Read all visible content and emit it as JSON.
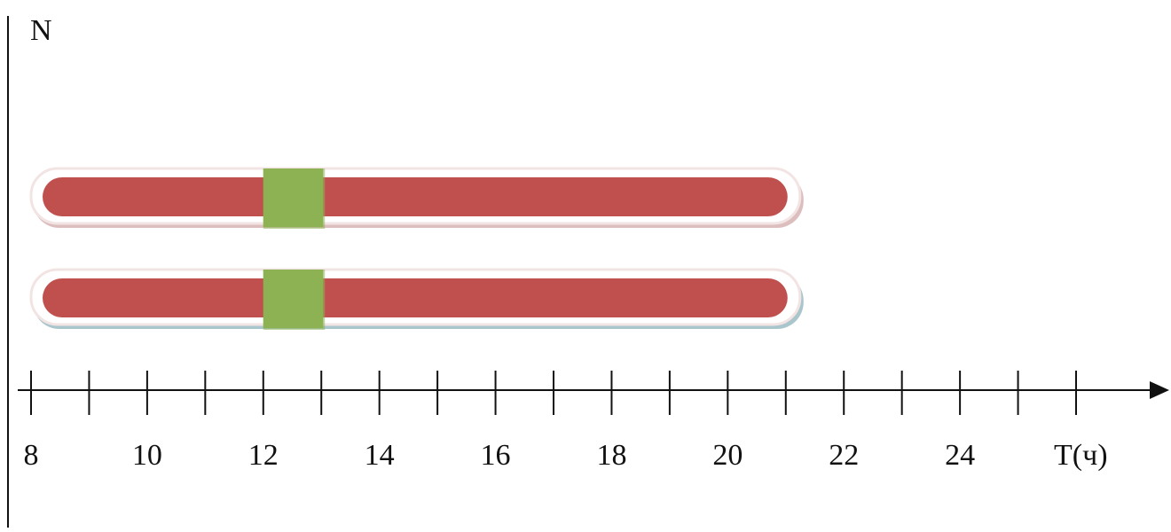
{
  "y_axis": {
    "label": "N"
  },
  "x_axis": {
    "label": "T(ч)",
    "tick_values": [
      8,
      9,
      10,
      11,
      12,
      13,
      14,
      15,
      16,
      17,
      18,
      19,
      20,
      21,
      22,
      23,
      24,
      25,
      26
    ],
    "labeled_ticks": [
      "8",
      "10",
      "12",
      "14",
      "16",
      "18",
      "20",
      "22",
      "24"
    ]
  },
  "timelines": [
    {
      "start_hour": 8,
      "end_hour": 21,
      "break_start_hour": 12,
      "break_end_hour": 13
    },
    {
      "start_hour": 8,
      "end_hour": 21,
      "break_start_hour": 12,
      "break_end_hour": 13
    }
  ],
  "colors": {
    "work_bar": "#c0504d",
    "break_block": "#8db254",
    "bar_glow": "#f3e4e4",
    "bar_shadow_top": "#d7b3b3",
    "bar_shadow_bottom": "#9bbcc4",
    "axis": "#111111"
  }
}
